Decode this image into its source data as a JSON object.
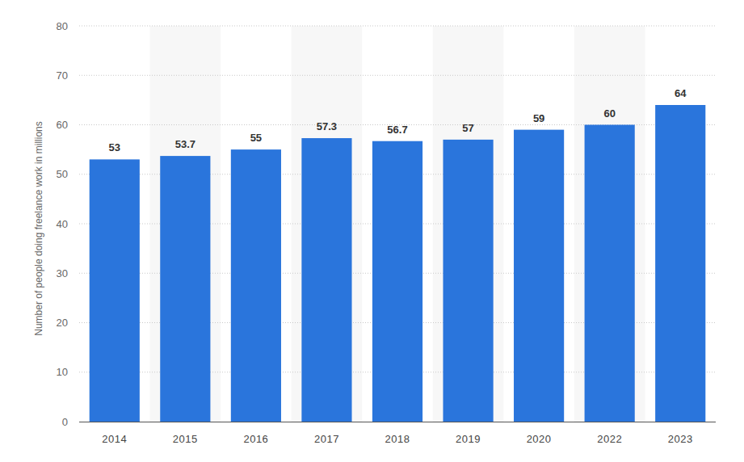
{
  "chart_data": {
    "type": "bar",
    "y_label": "Number of people doing freelance work in millions",
    "categories": [
      "2014",
      "2015",
      "2016",
      "2017",
      "2018",
      "2019",
      "2020",
      "2022",
      "2023"
    ],
    "values": [
      53,
      53.7,
      55,
      57.3,
      56.7,
      57,
      59,
      60,
      64
    ],
    "color": "#2a75dc",
    "ylim": [
      0,
      80
    ],
    "yticks": [
      0,
      10,
      20,
      30,
      40,
      50,
      60,
      70,
      80
    ],
    "grid": true,
    "data_labels": true
  }
}
